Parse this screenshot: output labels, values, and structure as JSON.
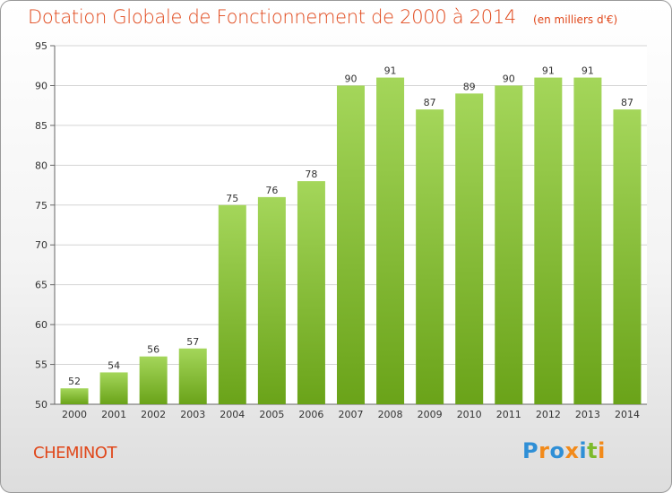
{
  "header": {
    "title": "Dotation Globale de Fonctionnement de 2000 à 2014",
    "subtitle": "(en milliers d'€)"
  },
  "footer": {
    "commune": "CHEMINOT",
    "brand": "Proxiti"
  },
  "colors": {
    "bar_top": "#a4d65a",
    "bar_bottom": "#6aa319",
    "title": "#e0471a",
    "brand_blue": "#2f8fd6",
    "brand_orange": "#f28a1a",
    "brand_green": "#7cba2c"
  },
  "chart_data": {
    "type": "bar",
    "title": "Dotation Globale de Fonctionnement de 2000 à 2014",
    "subtitle": "(en milliers d'€)",
    "xlabel": "",
    "ylabel": "",
    "categories": [
      "2000",
      "2001",
      "2002",
      "2003",
      "2004",
      "2005",
      "2006",
      "2007",
      "2008",
      "2009",
      "2010",
      "2011",
      "2012",
      "2013",
      "2014"
    ],
    "values": [
      52,
      54,
      56,
      57,
      75,
      76,
      78,
      90,
      91,
      87,
      89,
      90,
      91,
      91,
      87
    ],
    "ylim": [
      50,
      95
    ],
    "yticks": [
      50,
      55,
      60,
      65,
      70,
      75,
      80,
      85,
      90,
      95
    ],
    "grid": true,
    "data_labels": true
  }
}
